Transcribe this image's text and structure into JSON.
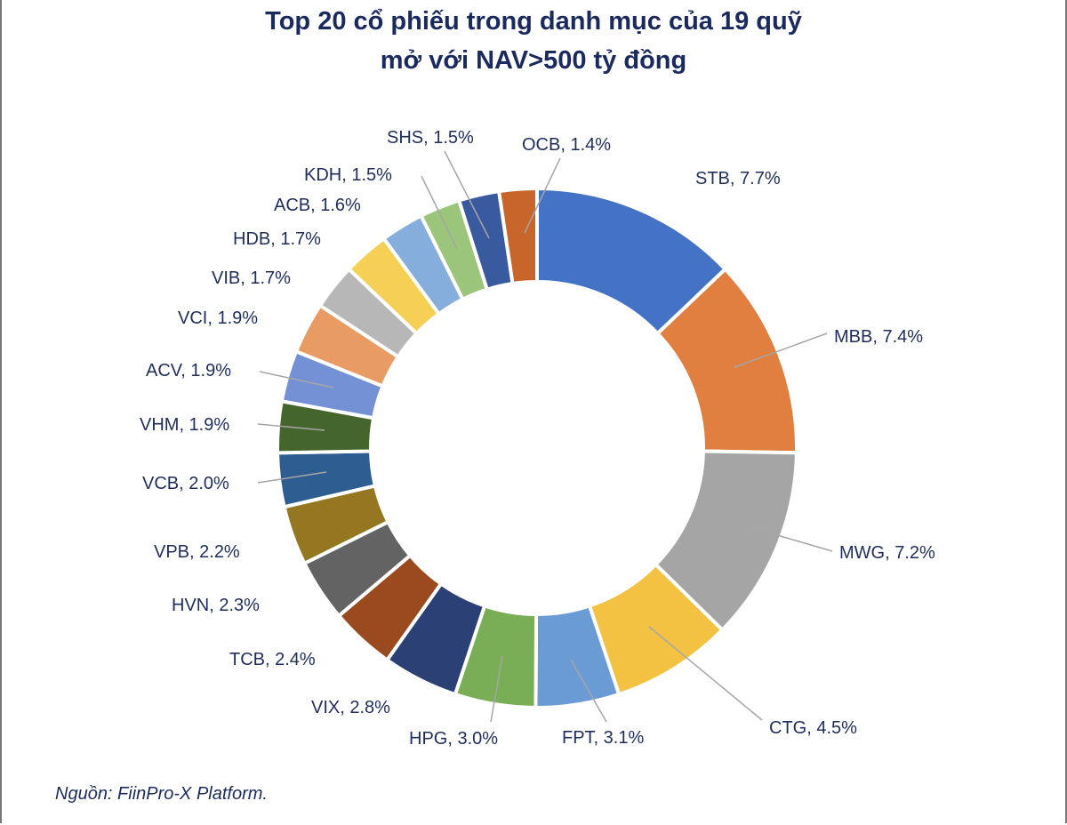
{
  "chart_data": {
    "type": "pie",
    "donut": true,
    "title_lines": [
      "Top 20 cổ phiếu trong danh mục của 19 quỹ",
      "mở với NAV>500 tỷ đồng"
    ],
    "source": "Nguồn: FiinPro-X Platform.",
    "label_color": "#1f2d5c",
    "slices": [
      {
        "name": "STB",
        "value": 7.7,
        "label": "STB, 7.7%",
        "color": "#4472C4"
      },
      {
        "name": "MBB",
        "value": 7.4,
        "label": "MBB, 7.4%",
        "color": "#E07F3F"
      },
      {
        "name": "MWG",
        "value": 7.2,
        "label": "MWG, 7.2%",
        "color": "#A5A5A5"
      },
      {
        "name": "CTG",
        "value": 4.5,
        "label": "CTG, 4.5%",
        "color": "#F4C242"
      },
      {
        "name": "FPT",
        "value": 3.1,
        "label": "FPT, 3.1%",
        "color": "#6A9BD5"
      },
      {
        "name": "HPG",
        "value": 3.0,
        "label": "HPG, 3.0%",
        "color": "#7AAE56"
      },
      {
        "name": "VIX",
        "value": 2.8,
        "label": "VIX, 2.8%",
        "color": "#2B4075"
      },
      {
        "name": "TCB",
        "value": 2.4,
        "label": "TCB, 2.4%",
        "color": "#9A4A1E"
      },
      {
        "name": "HVN",
        "value": 2.3,
        "label": "HVN, 2.3%",
        "color": "#636363"
      },
      {
        "name": "VPB",
        "value": 2.2,
        "label": "VPB, 2.2%",
        "color": "#957621"
      },
      {
        "name": "VCB",
        "value": 2.0,
        "label": "VCB, 2.0%",
        "color": "#2E5D91"
      },
      {
        "name": "VHM",
        "value": 1.9,
        "label": "VHM, 1.9%",
        "color": "#44652B"
      },
      {
        "name": "ACV",
        "value": 1.9,
        "label": "ACV, 1.9%",
        "color": "#7491D6"
      },
      {
        "name": "VCI",
        "value": 1.9,
        "label": "VCI, 1.9%",
        "color": "#E89C64"
      },
      {
        "name": "VIB",
        "value": 1.7,
        "label": "VIB, 1.7%",
        "color": "#B7B7B7"
      },
      {
        "name": "HDB",
        "value": 1.7,
        "label": "HDB, 1.7%",
        "color": "#F6CF55"
      },
      {
        "name": "ACB",
        "value": 1.6,
        "label": "ACB, 1.6%",
        "color": "#85AEDC"
      },
      {
        "name": "KDH",
        "value": 1.5,
        "label": "KDH, 1.5%",
        "color": "#9BC57A"
      },
      {
        "name": "SHS",
        "value": 1.5,
        "label": "SHS, 1.5%",
        "color": "#3A5A9F"
      },
      {
        "name": "OCB",
        "value": 1.4,
        "label": "OCB, 1.4%",
        "color": "#C7652A"
      }
    ]
  }
}
